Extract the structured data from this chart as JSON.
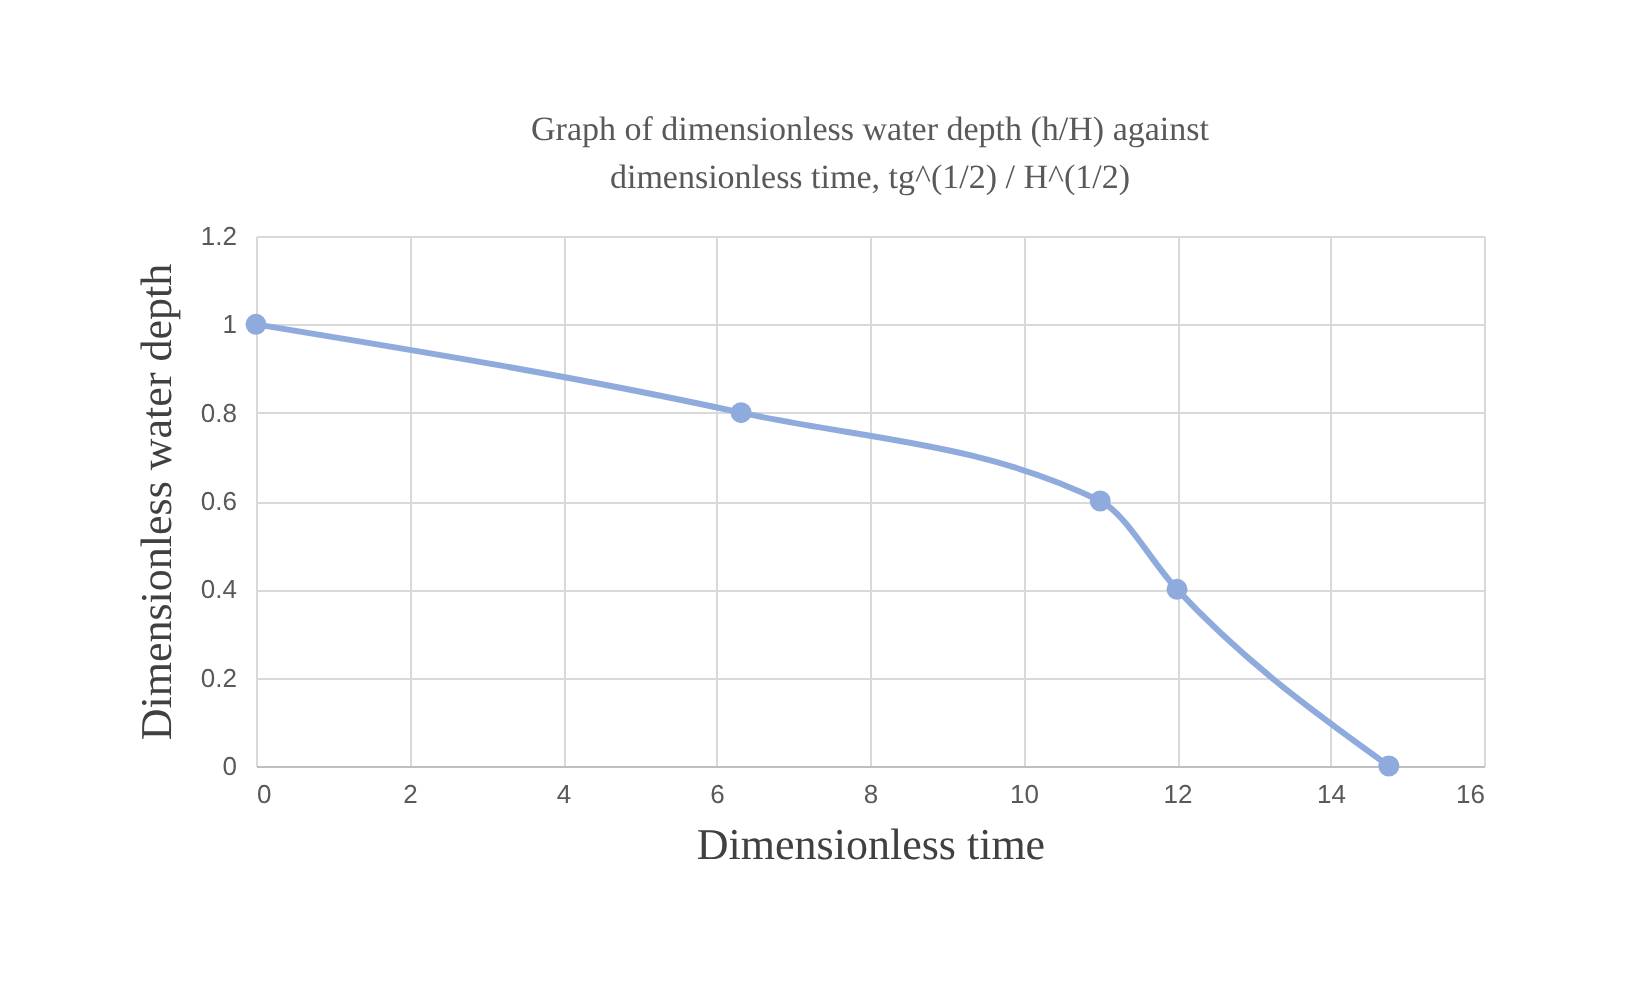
{
  "chart_data": {
    "type": "line",
    "title": [
      "Graph of dimensionless water depth (h/H) against",
      "dimensionless time, tg^(1/2) / H^(1/2)"
    ],
    "xlabel": "Dimensionless time",
    "ylabel": "Dimensionless water depth",
    "x": [
      0,
      6.32,
      11.0,
      12.0,
      14.76
    ],
    "series": [
      {
        "color": "#8faadc",
        "values": [
          1,
          0.8,
          0.6,
          0.4,
          0
        ]
      }
    ],
    "xlim": [
      0,
      16
    ],
    "xticks": [
      0,
      2,
      4,
      6,
      8,
      10,
      12,
      14,
      16
    ],
    "ylim": [
      0,
      1.2
    ],
    "yticks": [
      0,
      0.2,
      0.4,
      0.6,
      0.8,
      1,
      1.2
    ],
    "grid": true,
    "marker": "circle",
    "line_style": "solid"
  }
}
